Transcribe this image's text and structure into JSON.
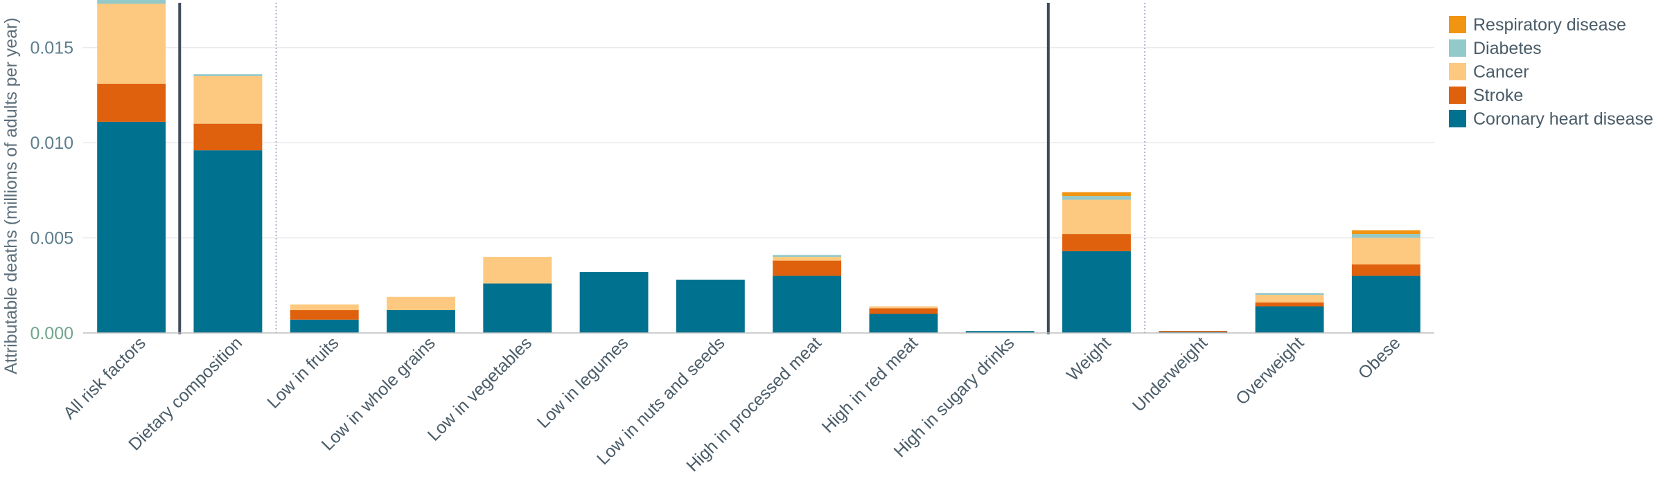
{
  "chart_data": {
    "type": "bar",
    "stacked": true,
    "ylabel": "Attributable deaths (millions of adults per year)",
    "ylim": [
      0,
      0.0175
    ],
    "yticks": [
      "0.000",
      "0.005",
      "0.010",
      "0.015"
    ],
    "ytick_values": [
      0,
      0.005,
      0.01,
      0.015
    ],
    "grid": true,
    "legend_position": "top-right",
    "categories": [
      "All risk factors",
      "Dietary composition",
      "Low in fruits",
      "Low in whole grains",
      "Low in vegetables",
      "Low in legumes",
      "Low in nuts and seeds",
      "High in processed meat",
      "High in red meat",
      "High in sugary drinks",
      "Weight",
      "Underweight",
      "Overweight",
      "Obese"
    ],
    "series": [
      {
        "name": "Coronary heart disease",
        "color": "#00718f",
        "values": [
          0.0111,
          0.0096,
          0.0007,
          0.0012,
          0.0026,
          0.0032,
          0.0028,
          0.003,
          0.001,
          0.0001,
          0.0043,
          5e-05,
          0.0014,
          0.003
        ]
      },
      {
        "name": "Stroke",
        "color": "#e0610d",
        "values": [
          0.002,
          0.0014,
          0.0005,
          0.0,
          0.0,
          0.0,
          0.0,
          0.0008,
          0.0003,
          0.0,
          0.0009,
          2e-05,
          0.0002,
          0.0006
        ]
      },
      {
        "name": "Cancer",
        "color": "#fdc980",
        "values": [
          0.0042,
          0.0025,
          0.0003,
          0.0007,
          0.0014,
          0.0,
          0.0,
          0.0002,
          0.0001,
          0.0,
          0.0018,
          0.0,
          0.0004,
          0.0014
        ]
      },
      {
        "name": "Diabetes",
        "color": "#94c9c9",
        "values": [
          0.0003,
          0.0001,
          0.0,
          0.0,
          0.0,
          0.0,
          0.0,
          0.0001,
          0.0,
          0.0,
          0.0002,
          0.0,
          0.0001,
          0.0002
        ]
      },
      {
        "name": "Respiratory disease",
        "color": "#f19411",
        "values": [
          0.0001,
          0.0,
          0.0,
          0.0,
          0.0,
          0.0,
          0.0,
          0.0,
          0.0,
          0.0,
          0.0002,
          0.0,
          0.0,
          0.0002
        ]
      }
    ],
    "separators": [
      {
        "after": 0,
        "style": "solid"
      },
      {
        "after": 1,
        "style": "dotted"
      },
      {
        "after": 9,
        "style": "solid"
      },
      {
        "after": 10,
        "style": "dotted"
      }
    ],
    "colors": {
      "axis_text": "#5c7d8b",
      "zero_tick": "#6fa58c",
      "grid": "#eaeaea",
      "separator": "#3e4b5b"
    }
  }
}
